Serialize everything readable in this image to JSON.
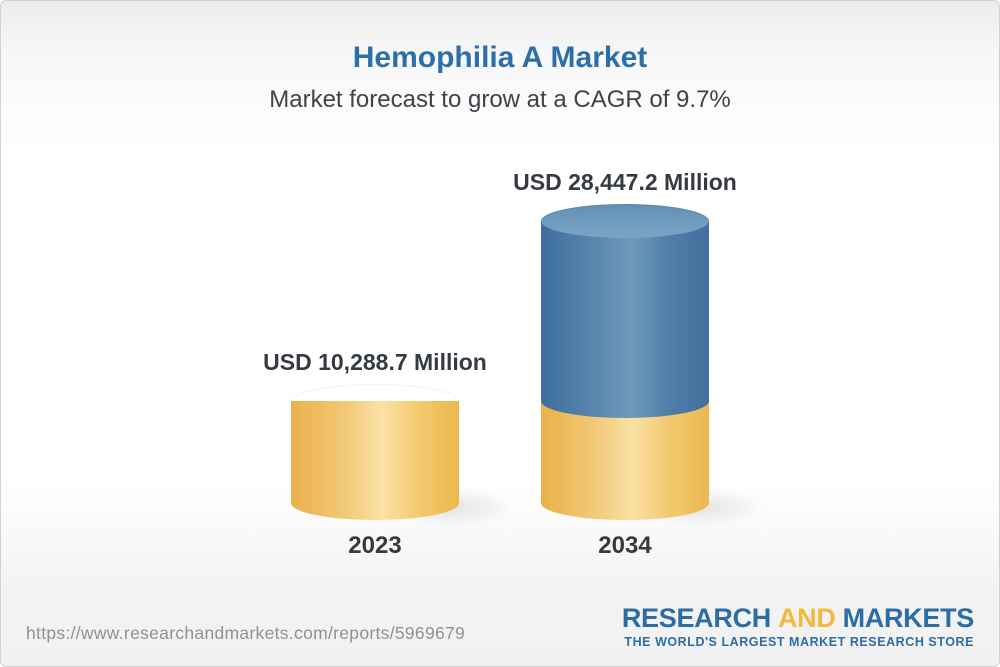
{
  "header": {
    "title": "Hemophilia A Market",
    "subtitle": "Market forecast to grow at a CAGR of 9.7%"
  },
  "chart_data": {
    "type": "bar",
    "variant": "3d-stacked-cylinders",
    "title": "Hemophilia A Market",
    "categories": [
      "2023",
      "2034"
    ],
    "values": [
      10288.7,
      28447.2
    ],
    "value_labels": [
      "USD 10,288.7 Million",
      "USD 28,447.2 Million"
    ],
    "base_segment_value": 10288.7,
    "unit": "USD Million",
    "cagr_percent": 9.7,
    "grid": false,
    "legend_position": "none",
    "colors": {
      "base_segment": "#efbb54",
      "growth_segment": "#4a7aa7",
      "label_text": "#363b41",
      "title_text": "#2c70ab"
    }
  },
  "footer": {
    "url": "https://www.researchandmarkets.com/reports/5969679",
    "logo": {
      "word1": "RESEARCH",
      "word2": "AND",
      "word3": "MARKETS",
      "tagline": "THE WORLD'S LARGEST MARKET RESEARCH STORE",
      "blue": "#2c6da6",
      "gold": "#f3b93f"
    }
  }
}
